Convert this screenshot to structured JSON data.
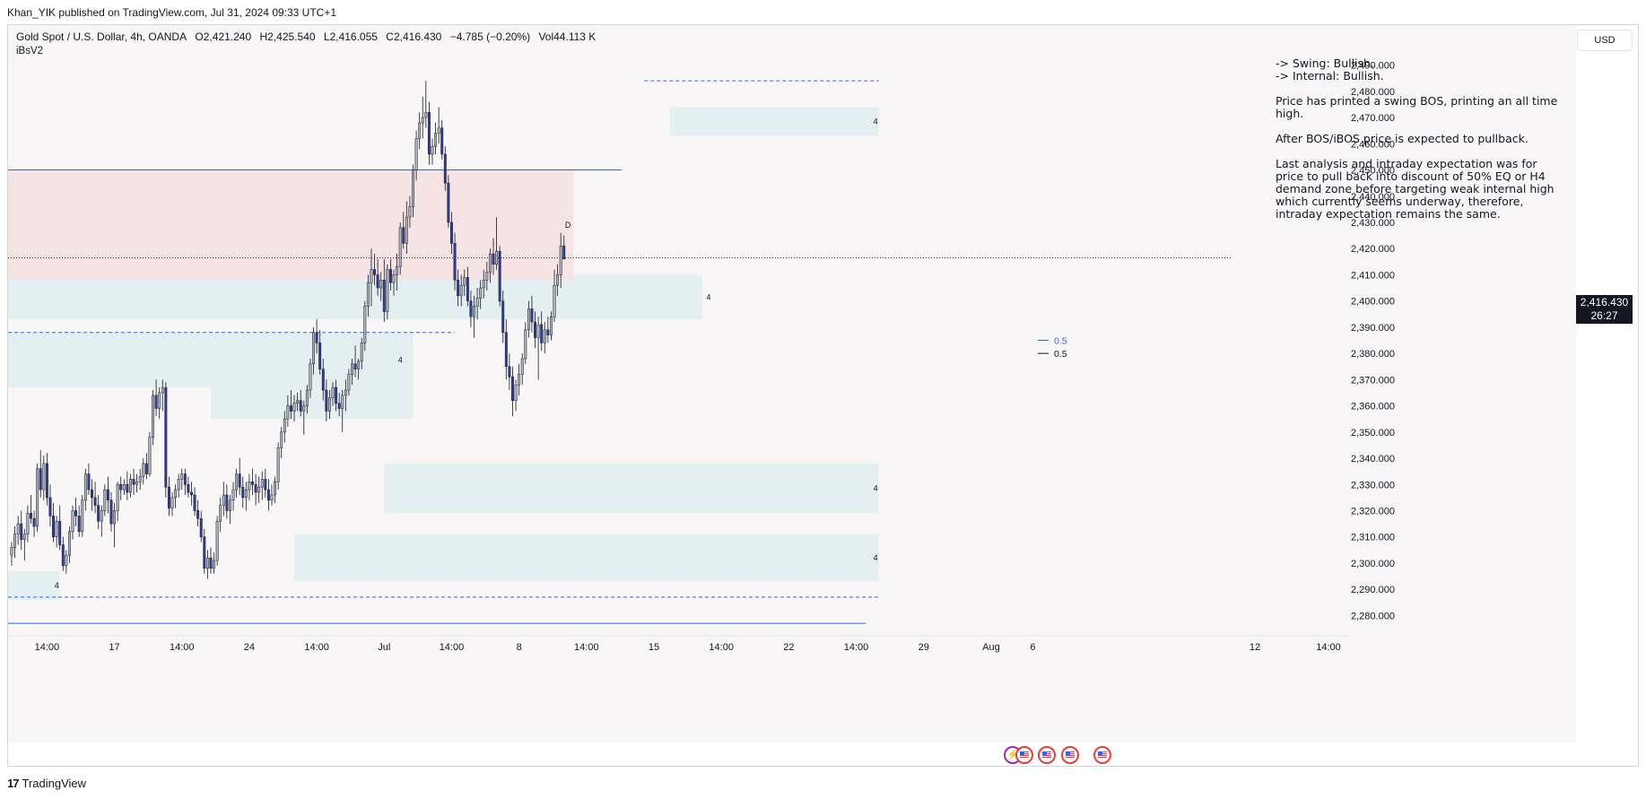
{
  "header": {
    "published_by": "Khan_YIK published on TradingView.com, Jul 31, 2024 09:33 UTC+1"
  },
  "legend": {
    "symbol": "Gold Spot / U.S. Dollar, 4h, OANDA",
    "open": "O2,421.240",
    "high": "H2,425.540",
    "low": "L2,416.055",
    "close": "C2,416.430",
    "change": "−4.785 (−0.20%)",
    "volume": "Vol44.113 K"
  },
  "indicator_label": "iBsV2",
  "currency_button": "USD",
  "analysis": {
    "swing": "-> Swing:  Bullish.",
    "internal": "-> Internal:  Bullish.",
    "p1": "Price has printed a swing BOS, printing an all time high.",
    "p2": "After BOS/iBOS price is expected to pullback.",
    "p3": "Last analysis and intraday expectation was for price to pull back into discount of 50% EQ or H4 demand zone before targeting weak internal high which currently seems underway, therefore, intraday expectation remains the same."
  },
  "price_tag": {
    "price": "2,416.430",
    "countdown": "26:27"
  },
  "footer": {
    "brand": "TradingView"
  },
  "colors": {
    "up": "#b2b5be",
    "down": "#2f3e9e",
    "wick": "#131722",
    "demand_zone": "#e3eff0",
    "supply_zone": "#f6e4e4",
    "blue_line": "#2962ff",
    "label_blue": "#2962ff"
  },
  "chart_data": {
    "type": "candlestick",
    "timeframe": "4h",
    "y_axis": {
      "ylim": [
        2275,
        2495
      ],
      "ticks": [
        2490,
        2480,
        2470,
        2460,
        2450,
        2440,
        2430,
        2420,
        2410,
        2400,
        2390,
        2380,
        2370,
        2360,
        2350,
        2340,
        2330,
        2320,
        2310,
        2300,
        2290,
        2280
      ],
      "tick_labels": [
        "2,490.000",
        "2,480.000",
        "2,470.000",
        "2,460.000",
        "2,450.000",
        "2,440.000",
        "2,430.000",
        "2,420.000",
        "2,410.000",
        "2,400.000",
        "2,390.000",
        "2,380.000",
        "2,370.000",
        "2,360.000",
        "2,350.000",
        "2,340.000",
        "2,330.000",
        "2,320.000",
        "2,310.000",
        "2,300.000",
        "2,290.000",
        "2,280.000"
      ],
      "current_price": 2416.43
    },
    "x_axis": {
      "bar_range": [
        -4,
        320
      ],
      "ticks": [
        {
          "bar": 11,
          "label": "14:00"
        },
        {
          "bar": 32,
          "label": "17"
        },
        {
          "bar": 53,
          "label": "14:00"
        },
        {
          "bar": 74,
          "label": "24"
        },
        {
          "bar": 95,
          "label": "14:00"
        },
        {
          "bar": 116,
          "label": "Jul"
        },
        {
          "bar": 137,
          "label": "14:00"
        },
        {
          "bar": 158,
          "label": "8"
        },
        {
          "bar": 179,
          "label": "14:00"
        },
        {
          "bar": 200,
          "label": "15"
        },
        {
          "bar": 221,
          "label": "14:00"
        },
        {
          "bar": 242,
          "label": "22"
        },
        {
          "bar": 263,
          "label": "14:00"
        },
        {
          "bar": 284,
          "label": "29"
        },
        {
          "bar": 305,
          "label": "Aug"
        },
        {
          "bar": 318,
          "label": "6"
        },
        {
          "bar": 335,
          "label": "12"
        },
        {
          "bar": 345,
          "label": "14:00"
        }
      ]
    },
    "candles": [
      [
        2303,
        2308,
        2299,
        2306
      ],
      [
        2306,
        2314,
        2302,
        2311
      ],
      [
        2311,
        2318,
        2307,
        2315
      ],
      [
        2315,
        2320,
        2305,
        2309
      ],
      [
        2309,
        2313,
        2301,
        2311
      ],
      [
        2311,
        2322,
        2308,
        2319
      ],
      [
        2319,
        2326,
        2315,
        2317
      ],
      [
        2317,
        2320,
        2310,
        2314
      ],
      [
        2314,
        2338,
        2312,
        2336
      ],
      [
        2336,
        2343,
        2325,
        2328
      ],
      [
        2328,
        2341,
        2324,
        2338
      ],
      [
        2338,
        2342,
        2322,
        2325
      ],
      [
        2325,
        2330,
        2314,
        2318
      ],
      [
        2318,
        2323,
        2308,
        2310
      ],
      [
        2310,
        2318,
        2306,
        2316
      ],
      [
        2316,
        2322,
        2305,
        2307
      ],
      [
        2307,
        2310,
        2297,
        2299
      ],
      [
        2299,
        2305,
        2296,
        2303
      ],
      [
        2303,
        2314,
        2300,
        2312
      ],
      [
        2312,
        2322,
        2309,
        2320
      ],
      [
        2320,
        2325,
        2314,
        2318
      ],
      [
        2318,
        2322,
        2310,
        2312
      ],
      [
        2312,
        2326,
        2310,
        2324
      ],
      [
        2324,
        2336,
        2320,
        2334
      ],
      [
        2334,
        2338,
        2326,
        2328
      ],
      [
        2328,
        2332,
        2320,
        2325
      ],
      [
        2325,
        2331,
        2319,
        2322
      ],
      [
        2322,
        2326,
        2313,
        2316
      ],
      [
        2316,
        2322,
        2310,
        2320
      ],
      [
        2320,
        2330,
        2318,
        2328
      ],
      [
        2328,
        2333,
        2319,
        2324
      ],
      [
        2324,
        2327,
        2312,
        2315
      ],
      [
        2315,
        2323,
        2306,
        2320
      ],
      [
        2320,
        2331,
        2316,
        2330
      ],
      [
        2330,
        2333,
        2324,
        2328
      ],
      [
        2328,
        2332,
        2326,
        2330
      ],
      [
        2330,
        2335,
        2324,
        2327
      ],
      [
        2327,
        2334,
        2325,
        2332
      ],
      [
        2332,
        2336,
        2326,
        2330
      ],
      [
        2330,
        2334,
        2327,
        2331
      ],
      [
        2331,
        2336,
        2328,
        2333
      ],
      [
        2333,
        2340,
        2330,
        2338
      ],
      [
        2338,
        2342,
        2332,
        2334
      ],
      [
        2334,
        2350,
        2333,
        2348
      ],
      [
        2348,
        2366,
        2345,
        2364
      ],
      [
        2364,
        2370,
        2356,
        2359
      ],
      [
        2359,
        2367,
        2355,
        2365
      ],
      [
        2365,
        2370,
        2358,
        2367
      ],
      [
        2367,
        2369,
        2325,
        2329
      ],
      [
        2329,
        2333,
        2318,
        2321
      ],
      [
        2321,
        2327,
        2318,
        2325
      ],
      [
        2325,
        2330,
        2321,
        2328
      ],
      [
        2328,
        2334,
        2325,
        2332
      ],
      [
        2332,
        2336,
        2328,
        2334
      ],
      [
        2334,
        2336,
        2326,
        2330
      ],
      [
        2330,
        2333,
        2325,
        2327
      ],
      [
        2327,
        2331,
        2322,
        2326
      ],
      [
        2326,
        2329,
        2318,
        2320
      ],
      [
        2320,
        2324,
        2314,
        2317
      ],
      [
        2317,
        2320,
        2308,
        2310
      ],
      [
        2310,
        2313,
        2296,
        2298
      ],
      [
        2298,
        2305,
        2294,
        2302
      ],
      [
        2302,
        2306,
        2296,
        2298
      ],
      [
        2298,
        2304,
        2296,
        2301
      ],
      [
        2301,
        2318,
        2299,
        2316
      ],
      [
        2316,
        2325,
        2312,
        2322
      ],
      [
        2322,
        2331,
        2318,
        2326
      ],
      [
        2326,
        2330,
        2317,
        2320
      ],
      [
        2320,
        2326,
        2315,
        2324
      ],
      [
        2324,
        2331,
        2320,
        2328
      ],
      [
        2328,
        2336,
        2325,
        2334
      ],
      [
        2334,
        2340,
        2326,
        2329
      ],
      [
        2329,
        2333,
        2321,
        2325
      ],
      [
        2325,
        2331,
        2320,
        2328
      ],
      [
        2328,
        2334,
        2324,
        2331
      ],
      [
        2331,
        2336,
        2326,
        2330
      ],
      [
        2330,
        2334,
        2322,
        2327
      ],
      [
        2327,
        2333,
        2323,
        2329
      ],
      [
        2329,
        2335,
        2324,
        2332
      ],
      [
        2332,
        2336,
        2325,
        2328
      ],
      [
        2328,
        2332,
        2320,
        2324
      ],
      [
        2324,
        2330,
        2322,
        2326
      ],
      [
        2326,
        2333,
        2323,
        2331
      ],
      [
        2331,
        2346,
        2328,
        2344
      ],
      [
        2344,
        2352,
        2340,
        2350
      ],
      [
        2350,
        2358,
        2346,
        2355
      ],
      [
        2355,
        2364,
        2352,
        2360
      ],
      [
        2360,
        2366,
        2355,
        2358
      ],
      [
        2358,
        2364,
        2354,
        2361
      ],
      [
        2361,
        2365,
        2358,
        2362
      ],
      [
        2362,
        2366,
        2356,
        2358
      ],
      [
        2358,
        2362,
        2349,
        2360
      ],
      [
        2360,
        2368,
        2357,
        2366
      ],
      [
        2366,
        2378,
        2363,
        2376
      ],
      [
        2376,
        2390,
        2372,
        2388
      ],
      [
        2388,
        2393,
        2380,
        2384
      ],
      [
        2384,
        2389,
        2372,
        2374
      ],
      [
        2374,
        2378,
        2362,
        2366
      ],
      [
        2366,
        2370,
        2354,
        2358
      ],
      [
        2358,
        2366,
        2355,
        2363
      ],
      [
        2363,
        2369,
        2360,
        2367
      ],
      [
        2367,
        2370,
        2358,
        2361
      ],
      [
        2361,
        2365,
        2356,
        2359
      ],
      [
        2359,
        2366,
        2350,
        2364
      ],
      [
        2364,
        2370,
        2358,
        2366
      ],
      [
        2366,
        2374,
        2364,
        2372
      ],
      [
        2372,
        2378,
        2368,
        2376
      ],
      [
        2376,
        2383,
        2371,
        2374
      ],
      [
        2374,
        2378,
        2370,
        2377
      ],
      [
        2377,
        2386,
        2374,
        2384
      ],
      [
        2384,
        2400,
        2381,
        2398
      ],
      [
        2398,
        2410,
        2394,
        2407
      ],
      [
        2407,
        2420,
        2398,
        2412
      ],
      [
        2412,
        2418,
        2406,
        2410
      ],
      [
        2410,
        2416,
        2402,
        2405
      ],
      [
        2405,
        2411,
        2400,
        2408
      ],
      [
        2408,
        2416,
        2392,
        2396
      ],
      [
        2396,
        2414,
        2393,
        2412
      ],
      [
        2412,
        2416,
        2404,
        2407
      ],
      [
        2407,
        2412,
        2402,
        2410
      ],
      [
        2410,
        2418,
        2404,
        2413
      ],
      [
        2413,
        2430,
        2410,
        2428
      ],
      [
        2428,
        2434,
        2420,
        2422
      ],
      [
        2422,
        2438,
        2418,
        2432
      ],
      [
        2432,
        2440,
        2428,
        2436
      ],
      [
        2436,
        2452,
        2432,
        2450
      ],
      [
        2450,
        2465,
        2446,
        2462
      ],
      [
        2462,
        2472,
        2458,
        2468
      ],
      [
        2468,
        2478,
        2462,
        2470
      ],
      [
        2470,
        2484,
        2466,
        2472
      ],
      [
        2472,
        2476,
        2452,
        2456
      ],
      [
        2456,
        2462,
        2452,
        2459
      ],
      [
        2459,
        2468,
        2456,
        2464
      ],
      [
        2464,
        2474,
        2460,
        2466
      ],
      [
        2466,
        2469,
        2454,
        2456
      ],
      [
        2456,
        2459,
        2442,
        2445
      ],
      [
        2445,
        2448,
        2428,
        2430
      ],
      [
        2430,
        2434,
        2418,
        2422
      ],
      [
        2422,
        2426,
        2404,
        2408
      ],
      [
        2408,
        2412,
        2398,
        2402
      ],
      [
        2402,
        2410,
        2398,
        2406
      ],
      [
        2406,
        2412,
        2402,
        2409
      ],
      [
        2409,
        2413,
        2398,
        2400
      ],
      [
        2400,
        2404,
        2390,
        2394
      ],
      [
        2394,
        2402,
        2386,
        2398
      ],
      [
        2398,
        2405,
        2393,
        2401
      ],
      [
        2401,
        2408,
        2397,
        2405
      ],
      [
        2405,
        2412,
        2401,
        2408
      ],
      [
        2408,
        2415,
        2404,
        2411
      ],
      [
        2411,
        2420,
        2407,
        2418
      ],
      [
        2418,
        2424,
        2410,
        2414
      ],
      [
        2414,
        2432,
        2412,
        2419
      ],
      [
        2419,
        2421,
        2398,
        2400
      ],
      [
        2400,
        2404,
        2384,
        2388
      ],
      [
        2388,
        2393,
        2370,
        2375
      ],
      [
        2375,
        2380,
        2366,
        2371
      ],
      [
        2371,
        2375,
        2356,
        2362
      ],
      [
        2362,
        2370,
        2358,
        2368
      ],
      [
        2368,
        2376,
        2364,
        2372
      ],
      [
        2372,
        2380,
        2368,
        2378
      ],
      [
        2378,
        2392,
        2376,
        2389
      ],
      [
        2389,
        2400,
        2386,
        2397
      ],
      [
        2397,
        2402,
        2388,
        2392
      ],
      [
        2392,
        2396,
        2382,
        2386
      ],
      [
        2386,
        2394,
        2370,
        2391
      ],
      [
        2391,
        2396,
        2381,
        2384
      ],
      [
        2384,
        2392,
        2380,
        2389
      ],
      [
        2389,
        2394,
        2384,
        2387
      ],
      [
        2387,
        2396,
        2385,
        2394
      ],
      [
        2394,
        2412,
        2392,
        2406
      ],
      [
        2406,
        2414,
        2402,
        2410
      ],
      [
        2410,
        2426,
        2405,
        2421
      ],
      [
        2421,
        2425,
        2416,
        2416
      ]
    ],
    "zones": [
      {
        "type": "demand",
        "from": -4,
        "to": 215,
        "low": 2393,
        "high": 2410,
        "label": "4",
        "label_bar": 218
      },
      {
        "type": "demand",
        "from": -4,
        "to": 125,
        "low": 2367,
        "high": 2388,
        "label": "4",
        "label_bar": 122
      },
      {
        "type": "demand",
        "from": 62,
        "to": 125,
        "low": 2355,
        "high": 2367
      },
      {
        "type": "demand",
        "from": -4,
        "to": 15,
        "low": 2286,
        "high": 2297,
        "label": "4",
        "label_bar": 15
      },
      {
        "type": "demand",
        "from": 116,
        "to": 270,
        "low": 2319,
        "high": 2338,
        "label": "4",
        "label_bar": 270
      },
      {
        "type": "demand",
        "from": 88,
        "to": 270,
        "low": 2293,
        "high": 2311,
        "label": "4",
        "label_bar": 270
      },
      {
        "type": "demand",
        "from": 205,
        "to": 270,
        "low": 2463,
        "high": 2474,
        "label": "4",
        "label_bar": 270
      },
      {
        "type": "supply",
        "from": -4,
        "to": 175,
        "low": 2408,
        "high": 2450,
        "label": "D",
        "label_bar": 174
      }
    ],
    "lines": [
      {
        "style": "solid",
        "color": "#2962ff",
        "from": -4,
        "to": 190,
        "price": 2450
      },
      {
        "style": "dashed",
        "color": "#2962ff",
        "from": -4,
        "to": 138,
        "price": 2388
      },
      {
        "style": "dashed",
        "color": "#2962ff",
        "from": 197,
        "to": 270,
        "price": 2484
      },
      {
        "style": "dashed",
        "color": "#2962ff",
        "from": -4,
        "to": 270,
        "price": 2287
      },
      {
        "style": "solid",
        "color": "#2962ff",
        "from": -4,
        "to": 266,
        "price": 2277
      },
      {
        "style": "dotted",
        "color": "#131722",
        "from": -4,
        "to": 380,
        "price": 2416.43
      }
    ],
    "eq_labels": [
      {
        "text": "0.5",
        "color": "#2962ff",
        "price": 2385
      },
      {
        "text": "0.5",
        "color": "#131722",
        "price": 2380
      }
    ]
  }
}
